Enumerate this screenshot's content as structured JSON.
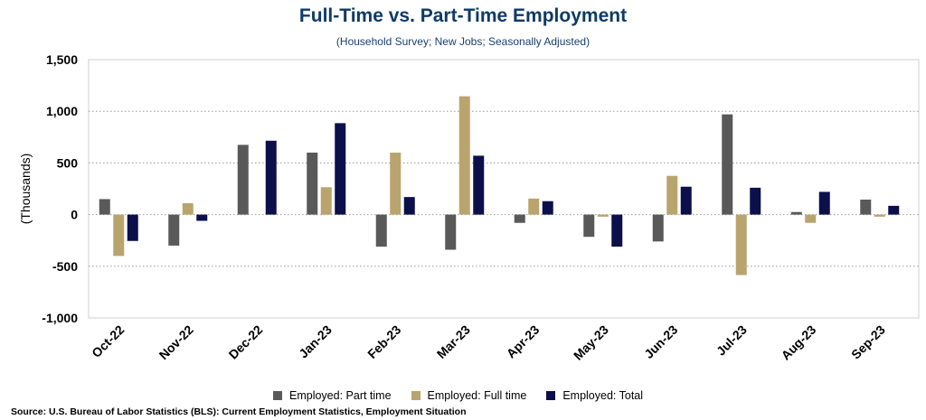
{
  "title": "Full-Time vs. Part-Time Employment",
  "subtitle": "(Household Survey; New Jobs; Seasonally Adjusted)",
  "source": "Source: U.S. Bureau of Labor Statistics (BLS): Current Employment Statistics, Employment Situation",
  "chart_data": {
    "type": "bar",
    "title": "Full-Time vs. Part-Time Employment",
    "subtitle": "(Household Survey; New Jobs; Seasonally Adjusted)",
    "xlabel": "",
    "ylabel": "(Thousands)",
    "ylim": [
      -1000,
      1500
    ],
    "yticks": [
      -1000,
      -500,
      0,
      500,
      1000,
      1500
    ],
    "ytick_labels": [
      "-1,000",
      "-500",
      "0",
      "500",
      "1,000",
      "1,500"
    ],
    "grid": "horizontal dotted",
    "legend_position": "bottom",
    "categories": [
      "Oct-22",
      "Nov-22",
      "Dec-22",
      "Jan-23",
      "Feb-23",
      "Mar-23",
      "Apr-23",
      "May-23",
      "Jun-23",
      "Jul-23",
      "Aug-23",
      "Sep-23"
    ],
    "series": [
      {
        "name": "Employed: Part time",
        "color": "#595959",
        "values": [
          150,
          -300,
          675,
          600,
          -310,
          -340,
          -80,
          -215,
          -260,
          970,
          25,
          145
        ]
      },
      {
        "name": "Employed: Full time",
        "color": "#b9a46e",
        "values": [
          -400,
          110,
          0,
          265,
          600,
          1145,
          155,
          -20,
          375,
          -585,
          -80,
          -20
        ]
      },
      {
        "name": "Employed: Total",
        "color": "#0b0f4a",
        "values": [
          -255,
          -60,
          715,
          885,
          170,
          570,
          130,
          -310,
          270,
          260,
          220,
          85
        ]
      }
    ]
  }
}
